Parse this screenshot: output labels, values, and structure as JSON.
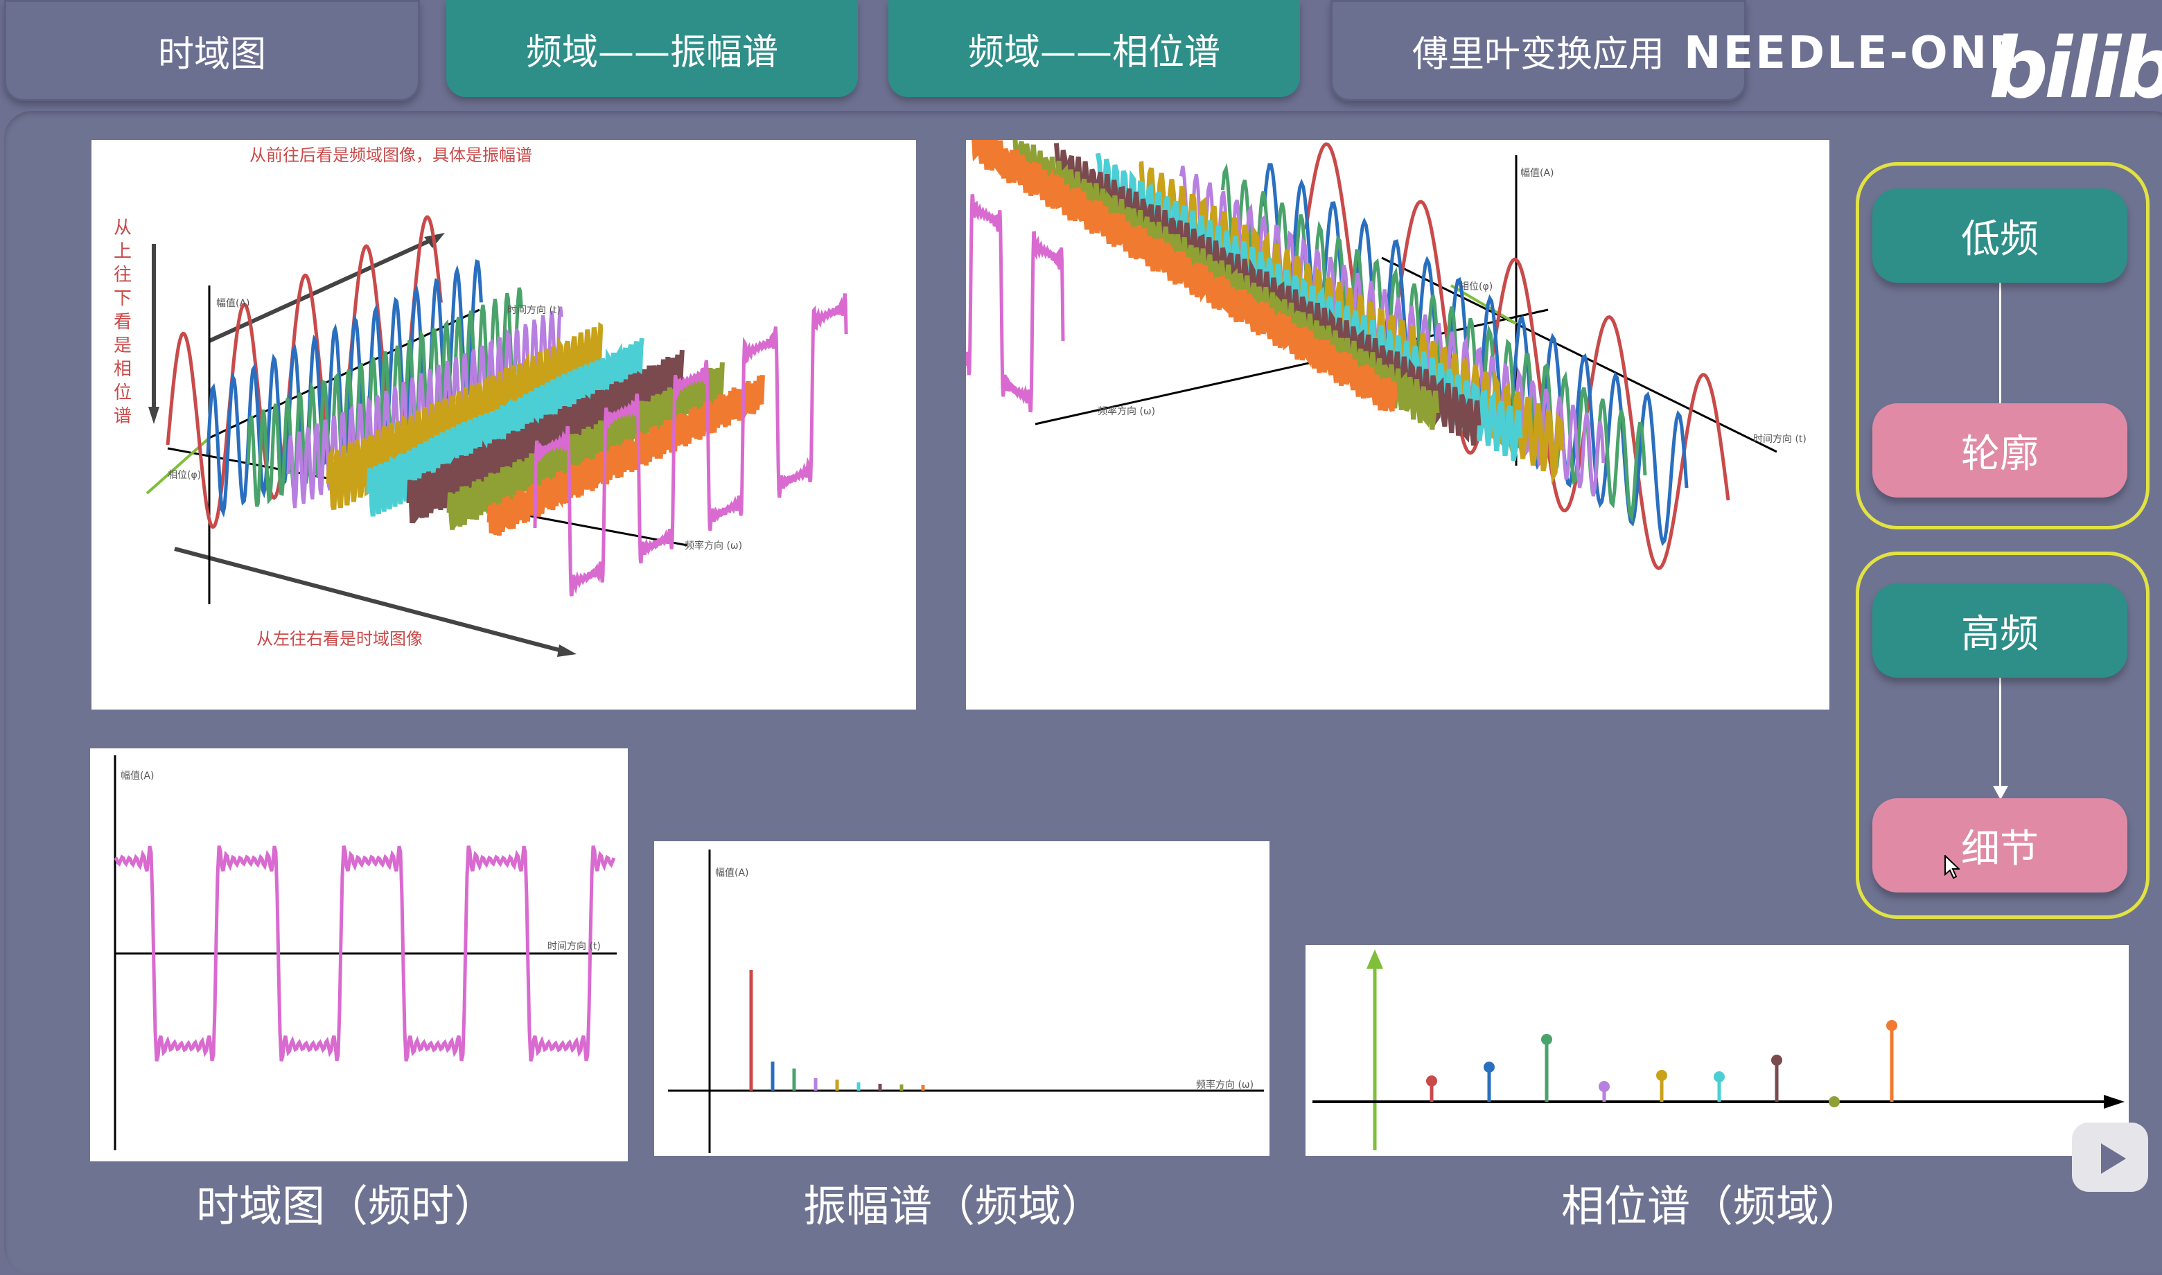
{
  "tabs": [
    {
      "label": "时域图"
    },
    {
      "label": "频域——振幅谱"
    },
    {
      "label": "频域——相位谱"
    },
    {
      "label": "傅里叶变换应用"
    }
  ],
  "brand": {
    "name": "NEEDLE-ONE",
    "logo": "bilibili"
  },
  "fig1": {
    "note_top": "从前往后看是频域图像，具体是振幅谱",
    "note_left": "从上往下看是相位谱",
    "note_bottom": "从左往右看是时域图像",
    "axis_amp": "幅值(A)",
    "axis_time": "时间方向 (t)",
    "axis_freq": "频率方向 (ω)",
    "axis_phase": "相位(φ)"
  },
  "fig2": {
    "axis_amp": "幅值(A)",
    "axis_phase": "相位(φ)",
    "axis_freq": "频率方向 (ω)",
    "axis_time": "时间方向 (t)"
  },
  "fig3": {
    "axis_amp": "幅值(A)",
    "axis_time": "时间方向 (t)"
  },
  "fig4": {
    "axis_amp": "幅值(A)",
    "axis_freq": "频率方向 (ω)"
  },
  "captions": {
    "time": "时域图（频时）",
    "amp": "振幅谱（频域）",
    "phase": "相位谱（频域）"
  },
  "side": {
    "group1": {
      "top": "低频",
      "bottom": "轮廓"
    },
    "group2": {
      "top": "高频",
      "bottom": "细节"
    }
  },
  "colors": {
    "red": "#c94a4a",
    "blue": "#2a6fbf",
    "green": "#4aa36a",
    "purple": "#b77fe0",
    "gold": "#c9a21a",
    "cyan": "#4ccfd4",
    "brown": "#7a4a4e",
    "olive": "#8fa034",
    "orange": "#f07a30",
    "magenta": "#d96ad0",
    "lime": "#7fbf3a"
  }
}
